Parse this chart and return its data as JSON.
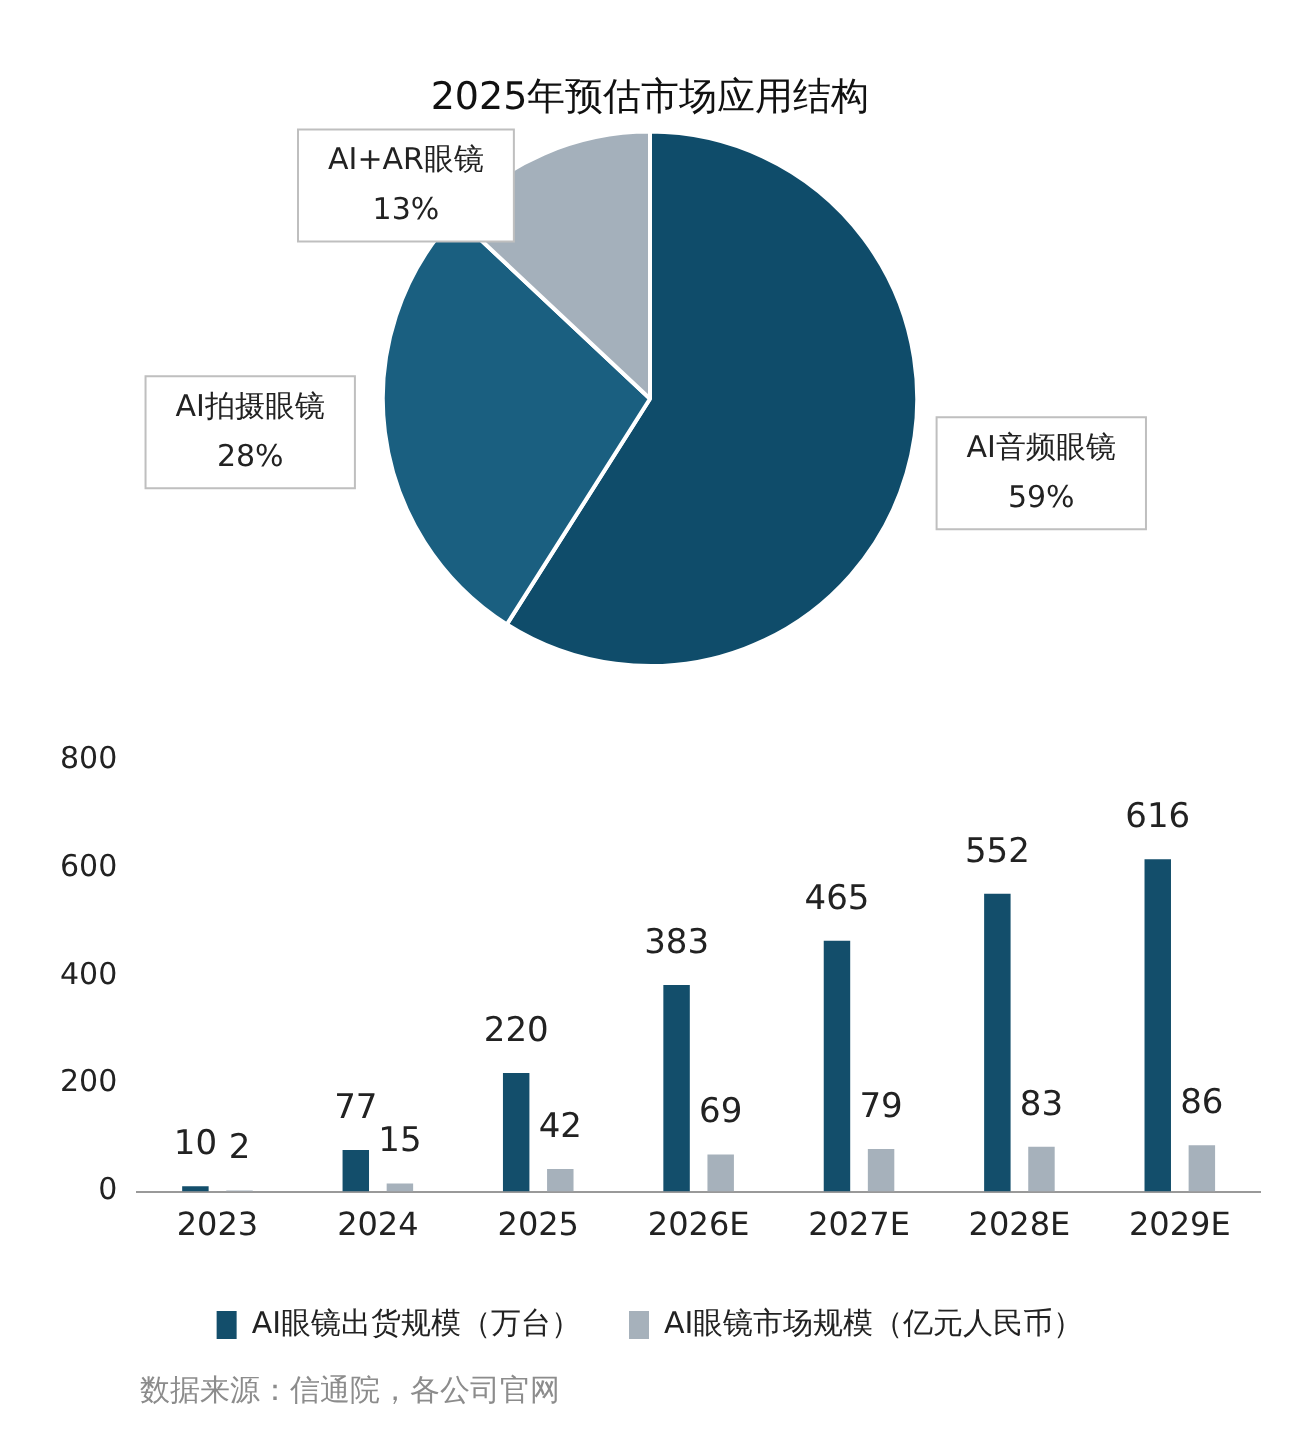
{
  "chart_data": [
    {
      "type": "pie",
      "title": "2025年预估市场应用结构",
      "categories": [
        "AI音频眼镜",
        "AI拍摄眼镜",
        "AI+AR眼镜"
      ],
      "values": [
        59,
        28,
        13
      ],
      "colors": [
        "#0f4c6a",
        "#1a5f80",
        "#a4b0bb"
      ],
      "value_labels": [
        "59%",
        "28%",
        "13%"
      ],
      "legend": false
    },
    {
      "type": "bar",
      "categories": [
        "2023",
        "2024",
        "2025",
        "2026E",
        "2027E",
        "2028E",
        "2029E"
      ],
      "series": [
        {
          "name": "AI眼镜出货规模（万台）",
          "color": "#134e6b",
          "values": [
            10,
            77,
            220,
            383,
            465,
            552,
            616
          ]
        },
        {
          "name": "AI眼镜市场规模（亿元人民币）",
          "color": "#a6b1bb",
          "values": [
            2,
            15,
            42,
            69,
            79,
            83,
            86
          ]
        }
      ],
      "ylim": [
        0,
        800
      ],
      "yticks": [
        0,
        200,
        400,
        600,
        800
      ],
      "grid": false,
      "legend": "bottom",
      "data_labels": true,
      "annotations": [
        "数据来源：信通院，各公司官网"
      ]
    }
  ]
}
